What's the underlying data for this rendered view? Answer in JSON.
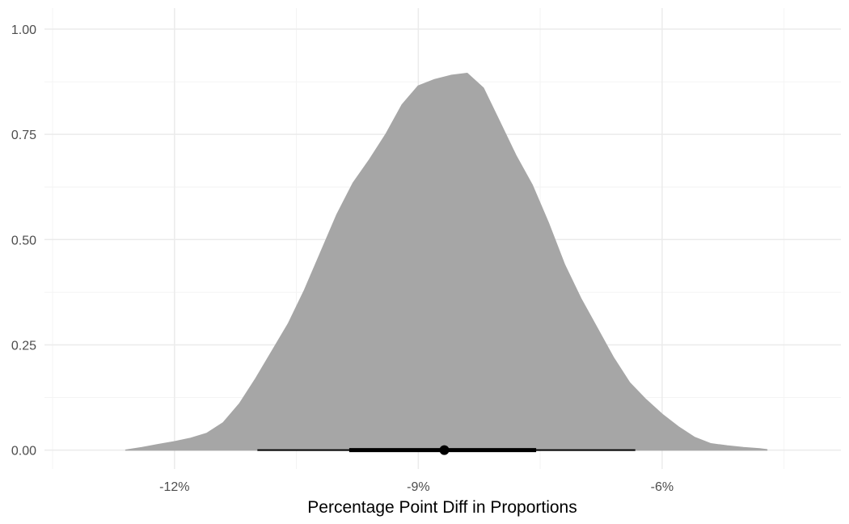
{
  "chart_data": {
    "type": "area",
    "title": "",
    "xlabel": "Percentage Point Diff in Proportions",
    "ylabel": "",
    "xlim": [
      -13.6,
      -3.8
    ],
    "ylim": [
      -0.045,
      1.05
    ],
    "x_ticks": [
      {
        "value": -12,
        "label": "-12%"
      },
      {
        "value": -9,
        "label": "-9%"
      },
      {
        "value": -6,
        "label": "-6%"
      }
    ],
    "y_ticks": [
      {
        "value": 0,
        "label": "0.00"
      },
      {
        "value": 0.25,
        "label": "0.25"
      },
      {
        "value": 0.5,
        "label": "0.50"
      },
      {
        "value": 0.75,
        "label": "0.75"
      },
      {
        "value": 1.0,
        "label": "1.00"
      }
    ],
    "grid": true,
    "density_x": [
      -12.6,
      -12.4,
      -12.2,
      -12.0,
      -11.8,
      -11.6,
      -11.4,
      -11.2,
      -11.0,
      -10.8,
      -10.6,
      -10.4,
      -10.2,
      -10.0,
      -9.8,
      -9.6,
      -9.4,
      -9.2,
      -9.0,
      -8.8,
      -8.6,
      -8.4,
      -8.2,
      -8.0,
      -7.8,
      -7.6,
      -7.4,
      -7.2,
      -7.0,
      -6.8,
      -6.6,
      -6.4,
      -6.2,
      -6.0,
      -5.8,
      -5.6,
      -5.4,
      -5.2,
      -5.0,
      -4.8,
      -4.71
    ],
    "density_y": [
      0.0,
      0.006,
      0.013,
      0.02,
      0.028,
      0.04,
      0.065,
      0.11,
      0.17,
      0.235,
      0.3,
      0.38,
      0.47,
      0.56,
      0.635,
      0.69,
      0.75,
      0.82,
      0.865,
      0.88,
      0.89,
      0.895,
      0.86,
      0.78,
      0.7,
      0.63,
      0.54,
      0.44,
      0.36,
      0.29,
      0.22,
      0.16,
      0.12,
      0.085,
      0.055,
      0.03,
      0.015,
      0.01,
      0.006,
      0.003,
      0.001
    ],
    "point_estimate": -8.68,
    "interval_66": [
      -9.85,
      -7.55
    ],
    "interval_95": [
      -10.98,
      -6.33
    ],
    "colors": {
      "density_fill": "#a6a6a6",
      "interval": "#000000",
      "grid_major": "#ebebeb",
      "grid_minor": "#f4f4f4"
    }
  }
}
